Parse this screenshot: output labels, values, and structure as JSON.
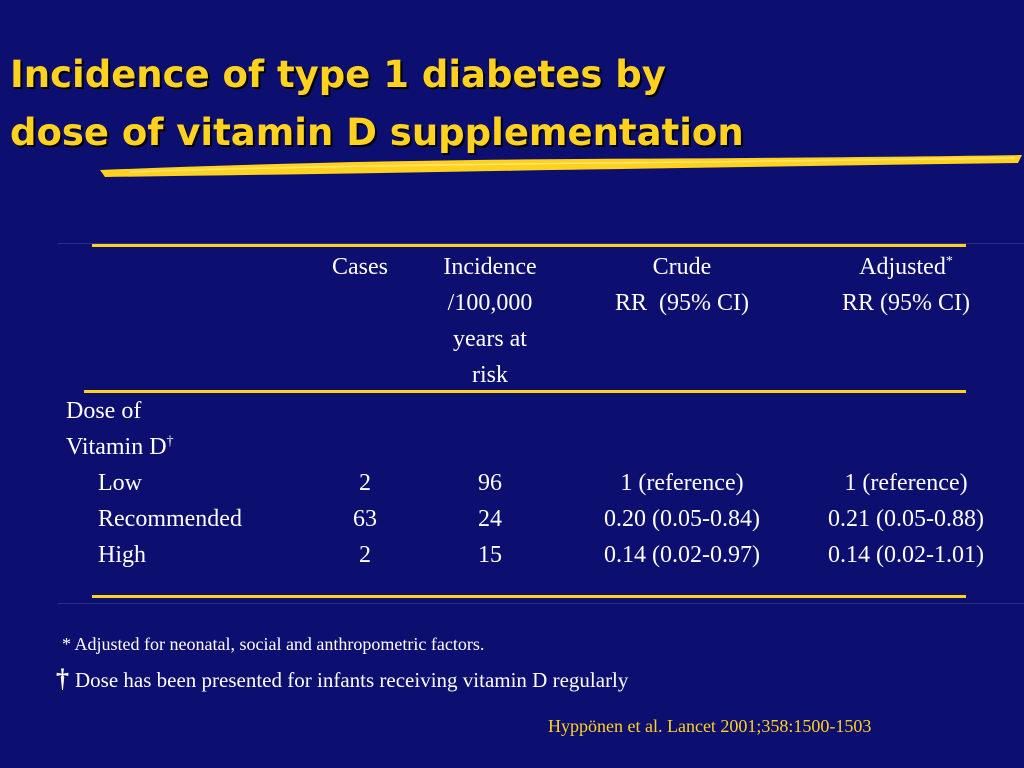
{
  "slide": {
    "title_line1": "Incidence of type 1 diabetes by",
    "title_line2": "dose of vitamin D supplementation",
    "accent_color": "#ffd21f",
    "background_color": "#0d0f70"
  },
  "table": {
    "headers": {
      "cases": "Cases",
      "incidence": [
        "Incidence",
        "/100,000",
        "years at",
        "risk"
      ],
      "crude": [
        "Crude",
        "RR  (95% CI)"
      ],
      "adjusted": [
        "Adjusted",
        "RR (95% CI)"
      ],
      "adjusted_marker": "*"
    },
    "group_label": [
      "Dose of",
      "Vitamin D"
    ],
    "group_marker": "†",
    "rows": [
      {
        "label": "Low",
        "cases": "2",
        "incidence": "96",
        "crude": "1 (reference)",
        "adjusted": "1 (reference)"
      },
      {
        "label": "Recommended",
        "cases": "63",
        "incidence": "24",
        "crude": "0.20 (0.05-0.84)",
        "adjusted": "0.21 (0.05-0.88)"
      },
      {
        "label": "High",
        "cases": "2",
        "incidence": "15",
        "crude": "0.14 (0.02-0.97)",
        "adjusted": "0.14 (0.02-1.01)"
      }
    ]
  },
  "footnotes": {
    "adjusted": "* Adjusted for neonatal, social and anthropometric factors.",
    "dagger_symbol": "†",
    "dose": "Dose has been presented for infants receiving vitamin D regularly"
  },
  "citation": "Hyppönen et al. Lancet 2001;358:1500-1503"
}
